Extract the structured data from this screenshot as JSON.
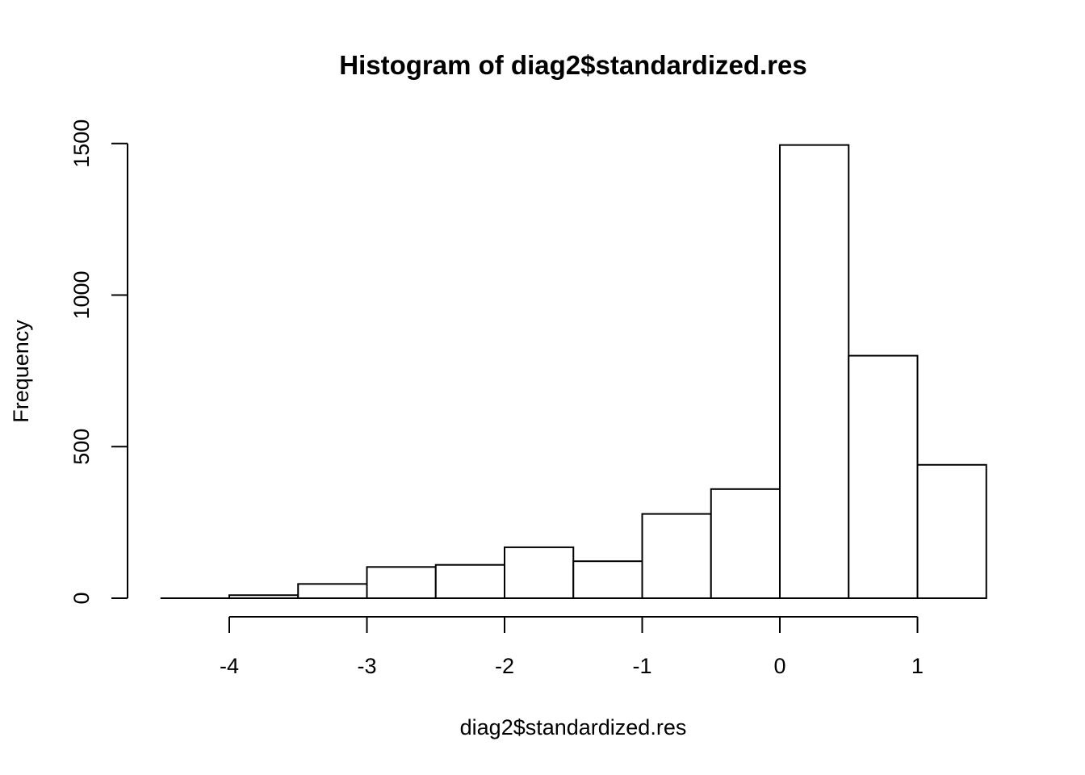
{
  "chart_data": {
    "type": "bar",
    "subtype": "histogram",
    "title": "Histogram of diag2$standardized.res",
    "xlabel": "diag2$standardized.res",
    "ylabel": "Frequency",
    "bins": [
      {
        "x0": -4.5,
        "x1": -4.0,
        "count": 0
      },
      {
        "x0": -4.0,
        "x1": -3.5,
        "count": 10
      },
      {
        "x0": -3.5,
        "x1": -3.0,
        "count": 47
      },
      {
        "x0": -3.0,
        "x1": -2.5,
        "count": 103
      },
      {
        "x0": -2.5,
        "x1": -2.0,
        "count": 110
      },
      {
        "x0": -2.0,
        "x1": -1.5,
        "count": 168
      },
      {
        "x0": -1.5,
        "x1": -1.0,
        "count": 122
      },
      {
        "x0": -1.0,
        "x1": -0.5,
        "count": 278
      },
      {
        "x0": -0.5,
        "x1": 0.0,
        "count": 360
      },
      {
        "x0": 0.0,
        "x1": 0.5,
        "count": 1495
      },
      {
        "x0": 0.5,
        "x1": 1.0,
        "count": 800
      },
      {
        "x0": 1.0,
        "x1": 1.5,
        "count": 440
      }
    ],
    "xticks": [
      -4,
      -3,
      -2,
      -1,
      0,
      1
    ],
    "xtick_labels": [
      "-4",
      "-3",
      "-2",
      "-1",
      "0",
      "1"
    ],
    "yticks": [
      0,
      500,
      1000,
      1500
    ],
    "ytick_labels": [
      "0",
      "500",
      "1000",
      "1500"
    ],
    "xlim": [
      -4.5,
      1.5
    ],
    "ylim": [
      0,
      1500
    ],
    "grid": false,
    "legend": "none",
    "colors": {
      "bar_fill": "#ffffff",
      "bar_stroke": "#000000"
    }
  }
}
